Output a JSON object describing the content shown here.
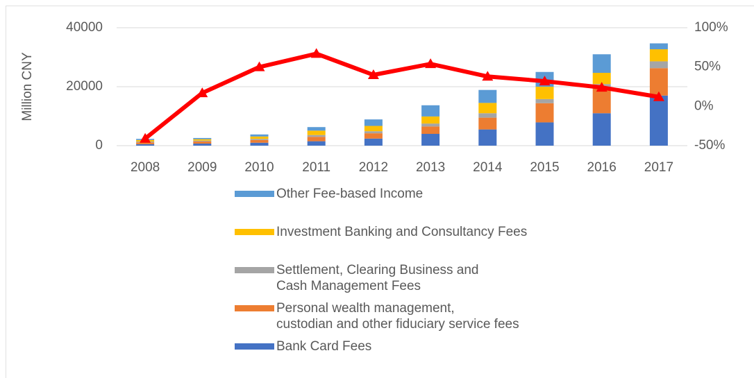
{
  "chart_data": {
    "type": "bar",
    "stacked": true,
    "y_label": "Million CNY",
    "categories": [
      "2008",
      "2009",
      "2010",
      "2011",
      "2012",
      "2013",
      "2014",
      "2015",
      "2016",
      "2017"
    ],
    "ylim": [
      0,
      40000
    ],
    "yticks": [
      0,
      20000,
      40000
    ],
    "y2lim": [
      -50,
      100
    ],
    "y2ticks": [
      {
        "value": -50,
        "label": "-50%"
      },
      {
        "value": 0,
        "label": "0%"
      },
      {
        "value": 50,
        "label": "50%"
      },
      {
        "value": 100,
        "label": "100%"
      }
    ],
    "grid": true,
    "legend": "bottom",
    "series": [
      {
        "name": "Bank Card Fees",
        "color": "#4472c4",
        "values": [
          500,
          700,
          1000,
          1500,
          2400,
          4000,
          5500,
          7900,
          11000,
          17000
        ]
      },
      {
        "name": "Personal wealth management,\ncustodian and other fiduciary service fees",
        "color": "#ed7d31",
        "values": [
          600,
          700,
          900,
          1500,
          1800,
          2500,
          4000,
          6500,
          8700,
          9300
        ]
      },
      {
        "name": "Settlement, Clearing Business and\nCash Management Fees",
        "color": "#a5a5a5",
        "values": [
          300,
          300,
          400,
          600,
          700,
          1000,
          1500,
          1400,
          1200,
          2300
        ]
      },
      {
        "name": "Investment Banking and Consultancy Fees",
        "color": "#ffc000",
        "values": [
          500,
          500,
          800,
          1500,
          1800,
          2400,
          3500,
          4200,
          3800,
          4100
        ]
      },
      {
        "name": "Other Fee-based Income",
        "color": "#5b9bd5",
        "values": [
          400,
          400,
          700,
          1200,
          2200,
          3800,
          4400,
          5000,
          6300,
          2000
        ]
      },
      {
        "type": "line",
        "axis": "y2",
        "color": "#ff0000",
        "marker": "triangle",
        "values": [
          -41,
          17,
          50,
          67,
          40,
          54,
          38,
          32,
          24,
          12
        ]
      }
    ]
  }
}
